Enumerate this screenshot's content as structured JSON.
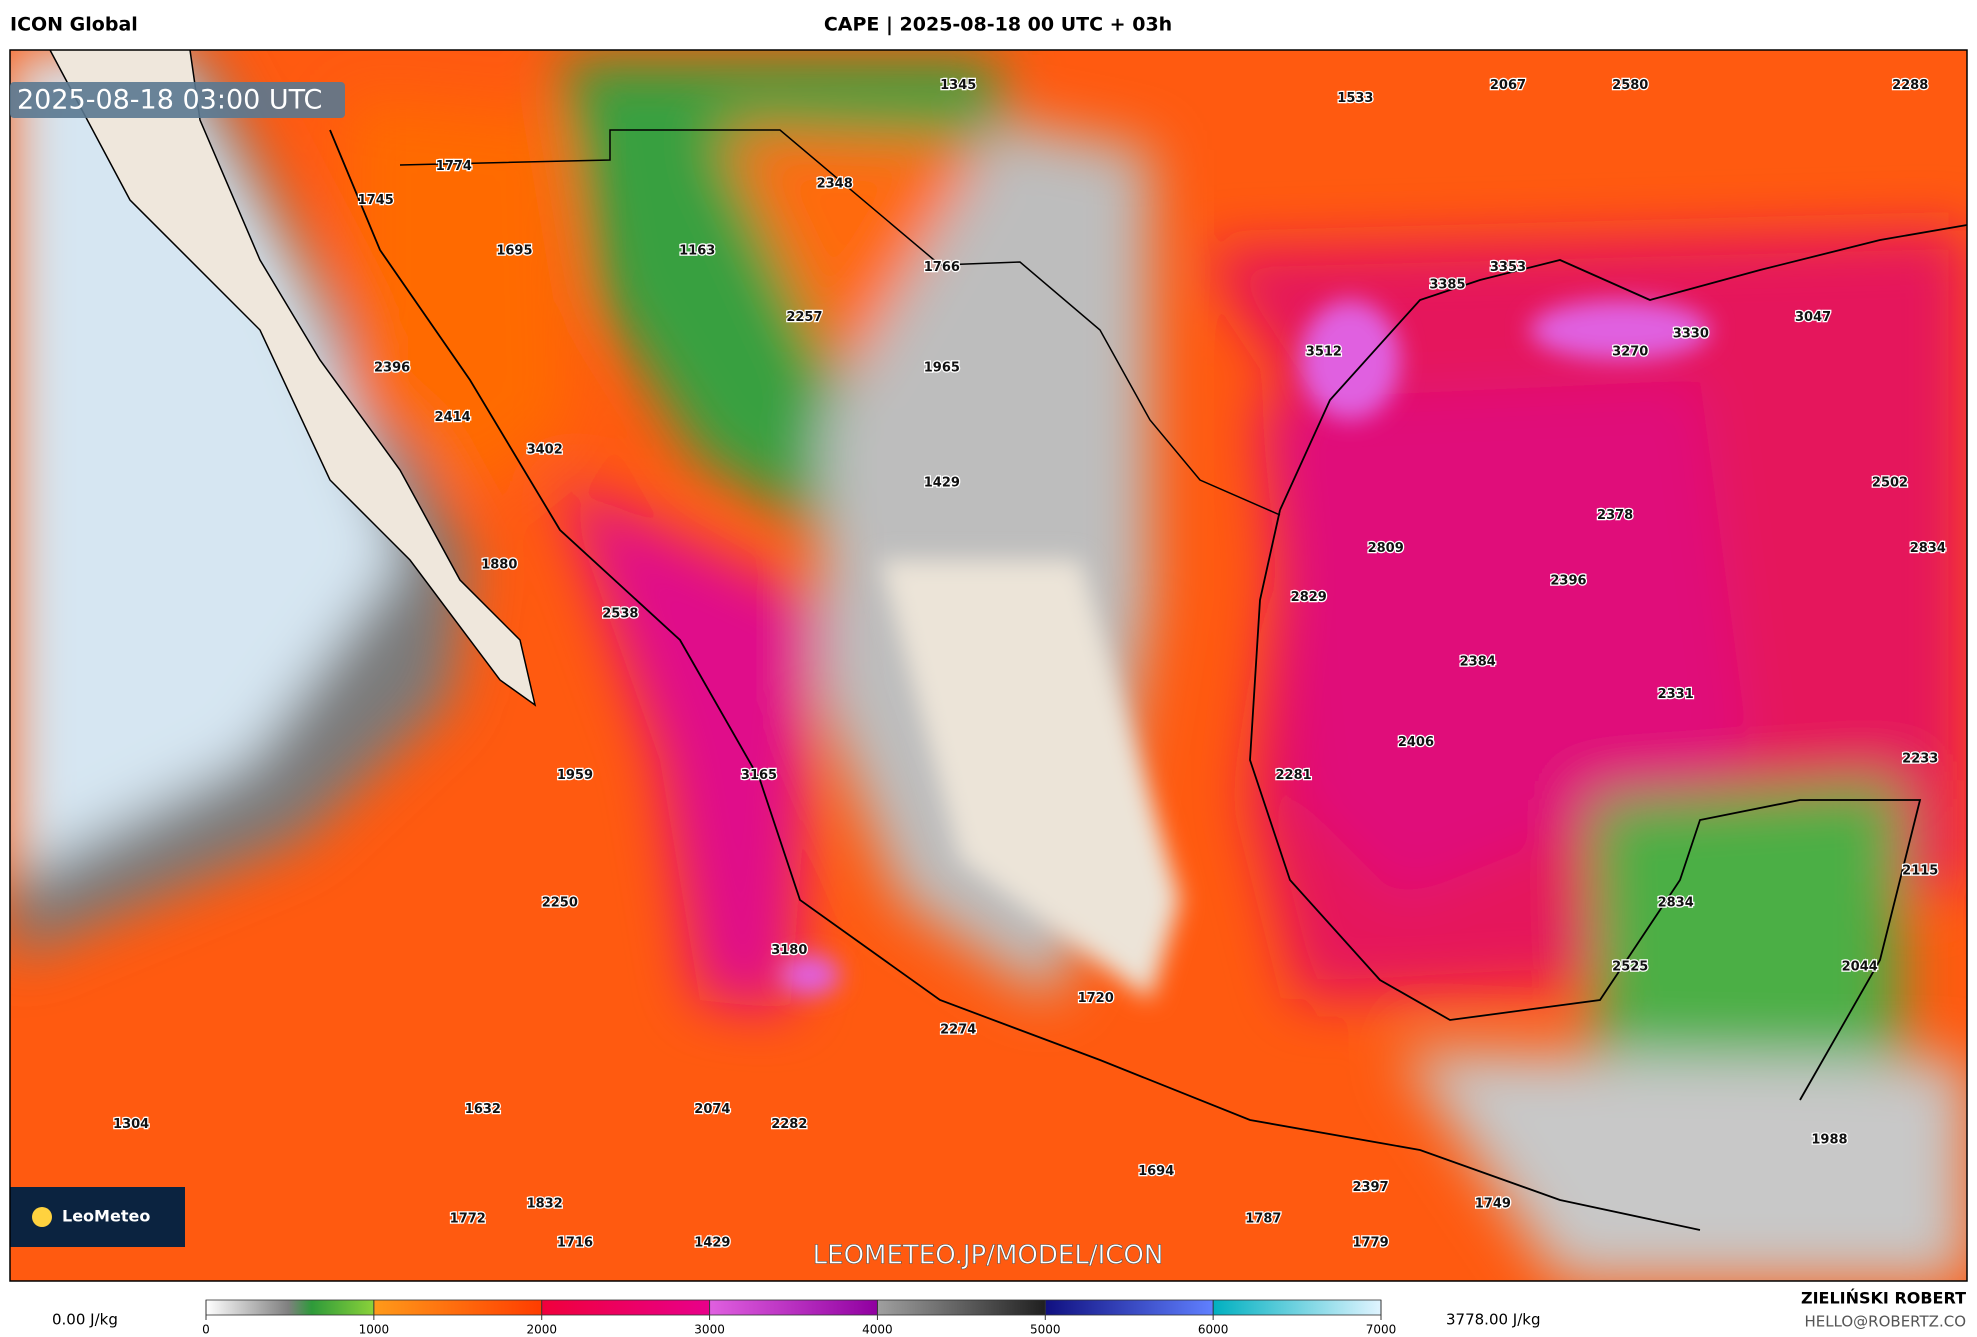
{
  "header": {
    "model": "ICON Global",
    "title": "CAPE | 2025-08-18 00 UTC + 03h",
    "valid_time": "2025-08-18 03:00 UTC"
  },
  "point_labels": [
    1345,
    1533,
    2067,
    2580,
    2288,
    1774,
    2348,
    1745,
    1695,
    1163,
    1766,
    3353,
    3385,
    2257,
    3047,
    3512,
    3270,
    3330,
    1965,
    2396,
    2414,
    3402,
    1429,
    2502,
    2378,
    2809,
    2834,
    1880,
    2396,
    2829,
    2538,
    2384,
    2331,
    2406,
    2233,
    1959,
    3165,
    2281,
    2115,
    2250,
    2834,
    3180,
    2525,
    2044,
    1720,
    2274,
    1632,
    2074,
    2282,
    1304,
    1988,
    1694,
    2397,
    1749,
    1832,
    1772,
    1787,
    1716,
    1429,
    1779
  ],
  "watermark": "LEOMETEO.JP/MODEL/ICON",
  "logo": "LeoMeteo",
  "colorbar": {
    "ticks": [
      0,
      1000,
      2000,
      3000,
      4000,
      5000,
      6000,
      7000
    ],
    "min_label": "0.00 J/kg",
    "max_label": "3778.00 J/kg"
  },
  "footer": {
    "author": "ZIELIŃSKI ROBERT",
    "contact": "HELLO@ROBERTZ.CO"
  }
}
